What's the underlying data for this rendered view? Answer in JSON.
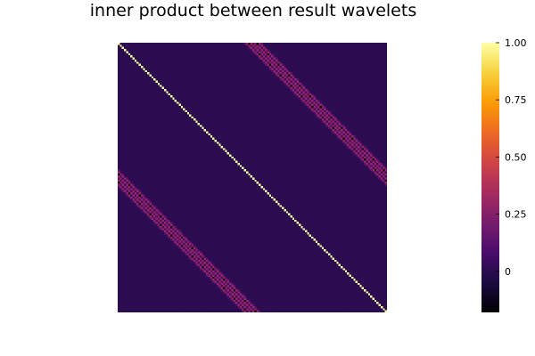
{
  "chart_data": {
    "type": "heatmap",
    "title": "inner product between result wavelets",
    "xlabel": "",
    "ylabel": "",
    "n": 128,
    "colormap": "inferno",
    "clim": [
      -0.18,
      1.0
    ],
    "colorbar_ticks": [
      "0",
      "0.25",
      "0.50",
      "0.75",
      "1.00"
    ],
    "colorbar_tick_values": [
      0,
      0.25,
      0.5,
      0.75,
      1.0
    ],
    "structure": {
      "diagonal_value": 1.0,
      "background_value": 0.0,
      "off_diagonal_band_offset": 62,
      "band_pattern_period": 5,
      "band_values_approx": [
        -0.18,
        0.12,
        0.3
      ]
    },
    "grid": false,
    "legend": "colorbar-right",
    "colors": {
      "inferno_stops": [
        "#000004",
        "#1b0c41",
        "#4a0c6b",
        "#781c6d",
        "#a52c60",
        "#cf4446",
        "#ed6925",
        "#fb9b06",
        "#f7d13d",
        "#fcffa4"
      ]
    }
  }
}
